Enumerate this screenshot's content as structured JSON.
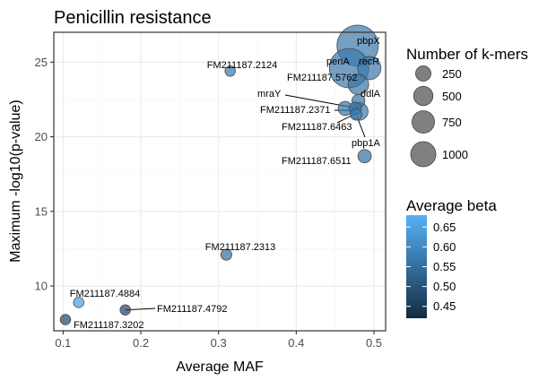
{
  "chart_data": {
    "type": "scatter",
    "title": "Penicillin resistance",
    "xlabel": "Average MAF",
    "ylabel": "Maximum -log10(p-value)",
    "xlim": [
      0.088,
      0.515
    ],
    "ylim": [
      7.0,
      27.0
    ],
    "x_ticks": [
      0.1,
      0.2,
      0.3,
      0.4,
      0.5
    ],
    "x_tick_labels": [
      "0.1",
      "0.2",
      "0.3",
      "0.4",
      "0.5"
    ],
    "y_ticks": [
      10,
      15,
      20,
      25
    ],
    "y_tick_labels": [
      "10",
      "15",
      "20",
      "25"
    ],
    "grid": true,
    "legend_placement": "right",
    "colors": {
      "panel_border": "#333333",
      "grid_major": "#ebebeb",
      "grid_minor": "#f5f5f5",
      "point_stroke": "#4a4a4a",
      "leader_line": "#000000",
      "beta_low": "#132b43",
      "beta_high": "#56b1f7"
    },
    "size_legend": {
      "title": "Number of k-mers",
      "entries": [
        {
          "label": "250",
          "value": 250
        },
        {
          "label": "500",
          "value": 500
        },
        {
          "label": "750",
          "value": 750
        },
        {
          "label": "1000",
          "value": 1000
        }
      ]
    },
    "color_legend": {
      "title": "Average beta",
      "min": 0.42,
      "max": 0.68,
      "ticks": [
        {
          "label": "0.65",
          "value": 0.65
        },
        {
          "label": "0.60",
          "value": 0.6
        },
        {
          "label": "0.55",
          "value": 0.55
        },
        {
          "label": "0.50",
          "value": 0.5
        },
        {
          "label": "0.45",
          "value": 0.45
        }
      ]
    },
    "points": [
      {
        "label": "FM211187.3202",
        "x": 0.103,
        "y": 7.75,
        "kmers": 20,
        "beta": 0.47
      },
      {
        "label": "FM211187.4884",
        "x": 0.12,
        "y": 8.9,
        "kmers": 20,
        "beta": 0.64
      },
      {
        "label": "FM211187.4792",
        "x": 0.18,
        "y": 8.4,
        "kmers": 20,
        "beta": 0.46
      },
      {
        "label": "FM211187.2313",
        "x": 0.31,
        "y": 12.1,
        "kmers": 25,
        "beta": 0.55
      },
      {
        "label": "FM211187.2124",
        "x": 0.315,
        "y": 24.4,
        "kmers": 20,
        "beta": 0.57
      },
      {
        "label": "FM211187.6511",
        "x": 0.488,
        "y": 18.7,
        "kmers": 50,
        "beta": 0.55
      },
      {
        "label": "pbp1A",
        "x": 0.477,
        "y": 21.5,
        "kmers": 30,
        "beta": 0.57
      },
      {
        "label": "FM211187.6463",
        "x": 0.476,
        "y": 21.9,
        "kmers": 40,
        "beta": 0.57
      },
      {
        "label": "FM211187.2371",
        "x": 0.463,
        "y": 21.9,
        "kmers": 60,
        "beta": 0.56
      },
      {
        "label": "mraY",
        "x": 0.481,
        "y": 21.7,
        "kmers": 120,
        "beta": 0.57
      },
      {
        "label": "ddlA",
        "x": 0.48,
        "y": 22.4,
        "kmers": 45,
        "beta": 0.56
      },
      {
        "label": "FM211187.5762",
        "x": 0.48,
        "y": 23.5,
        "kmers": 180,
        "beta": 0.56
      },
      {
        "label": "penA",
        "x": 0.468,
        "y": 24.6,
        "kmers": 900,
        "beta": 0.57
      },
      {
        "label": "recR",
        "x": 0.494,
        "y": 24.6,
        "kmers": 250,
        "beta": 0.57
      },
      {
        "label": "pbpX",
        "x": 0.479,
        "y": 26.1,
        "kmers": 1000,
        "beta": 0.57
      }
    ]
  }
}
